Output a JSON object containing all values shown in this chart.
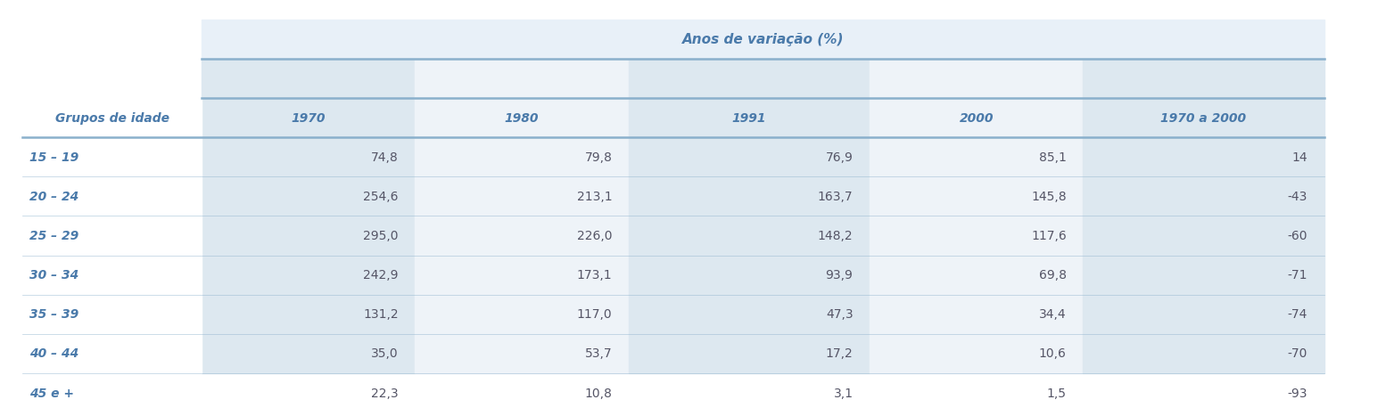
{
  "title": "Anos de variação (%)",
  "col_header_label": "Grupos de idade",
  "columns": [
    "1970",
    "1980",
    "1991",
    "2000",
    "1970 a 2000"
  ],
  "rows": [
    {
      "label": "15 – 19",
      "values": [
        "74,8",
        "79,8",
        "76,9",
        "85,1",
        "14"
      ]
    },
    {
      "label": "20 – 24",
      "values": [
        "254,6",
        "213,1",
        "163,7",
        "145,8",
        "-43"
      ]
    },
    {
      "label": "25 – 29",
      "values": [
        "295,0",
        "226,0",
        "148,2",
        "117,6",
        "-60"
      ]
    },
    {
      "label": "30 – 34",
      "values": [
        "242,9",
        "173,1",
        "93,9",
        "69,8",
        "-71"
      ]
    },
    {
      "label": "35 – 39",
      "values": [
        "131,2",
        "117,0",
        "47,3",
        "34,4",
        "-74"
      ]
    },
    {
      "label": "40 – 44",
      "values": [
        "35,0",
        "53,7",
        "17,2",
        "10,6",
        "-70"
      ]
    },
    {
      "label": "45 e +",
      "values": [
        "22,3",
        "10,8",
        "3,1",
        "1,5",
        "-93"
      ]
    }
  ],
  "alt_col_bg": "#dde8f0",
  "white_col_bg": "#eef3f8",
  "text_color_header": "#4a7aaa",
  "text_color_label": "#4a7aaa",
  "text_color_data": "#555566",
  "line_color": "#8ab0cc",
  "bg_color": "#ffffff",
  "shaded_cols": [
    0,
    2,
    4
  ]
}
